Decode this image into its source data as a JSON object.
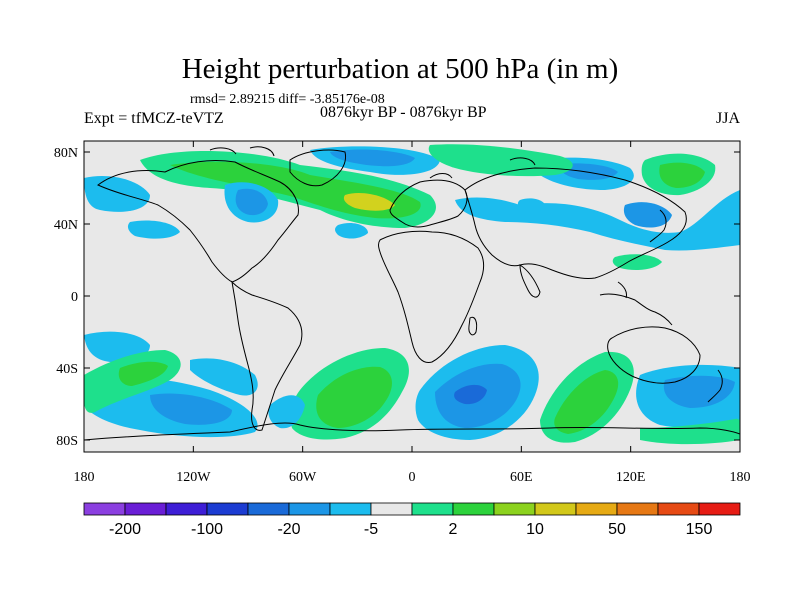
{
  "title": "Height perturbation at 500 hPa (in m)",
  "stats": "rmsd= 2.89215 diff= -3.85176e-08",
  "left_label": "Expt = tfMCZ-teVTZ",
  "center_label": "0876kyr BP - 0876kyr BP",
  "right_label": "JJA",
  "lat_ticks": [
    {
      "label": "80N",
      "lat": 80
    },
    {
      "label": "40N",
      "lat": 40
    },
    {
      "label": "0",
      "lat": 0
    },
    {
      "label": "40S",
      "lat": -40
    },
    {
      "label": "80S",
      "lat": -80
    }
  ],
  "lon_ticks": [
    {
      "label": "180",
      "lon": -180
    },
    {
      "label": "120W",
      "lon": -120
    },
    {
      "label": "60W",
      "lon": -60
    },
    {
      "label": "0",
      "lon": 0
    },
    {
      "label": "60E",
      "lon": 60
    },
    {
      "label": "120E",
      "lon": 120
    },
    {
      "label": "180",
      "lon": 180
    }
  ],
  "colorbar": {
    "colors": [
      "#8b3fe0",
      "#6a1ed6",
      "#3e1ed6",
      "#1c3cd2",
      "#1a6ad8",
      "#1c96e6",
      "#1cbcee",
      "#e8e8e8",
      "#1ee08c",
      "#2cd23c",
      "#8cd21e",
      "#d2c81a",
      "#e6aa14",
      "#e67814",
      "#e64a14",
      "#e61c14"
    ],
    "labels": [
      {
        "text": "-200",
        "boundary": 1
      },
      {
        "text": "-100",
        "boundary": 3
      },
      {
        "text": "-20",
        "boundary": 5
      },
      {
        "text": "-5",
        "boundary": 7
      },
      {
        "text": "2",
        "boundary": 9
      },
      {
        "text": "10",
        "boundary": 11
      },
      {
        "text": "50",
        "boundary": 13
      },
      {
        "text": "150",
        "boundary": 15
      }
    ]
  },
  "map_colors": {
    "ocean": "#e8e8e8",
    "blue_light": "#1cbcee",
    "blue_mid": "#1c96e6",
    "blue_dark": "#1a6ad8",
    "green_light": "#1ee08c",
    "green_mid": "#2cd23c",
    "yellow": "#d2d21e"
  }
}
